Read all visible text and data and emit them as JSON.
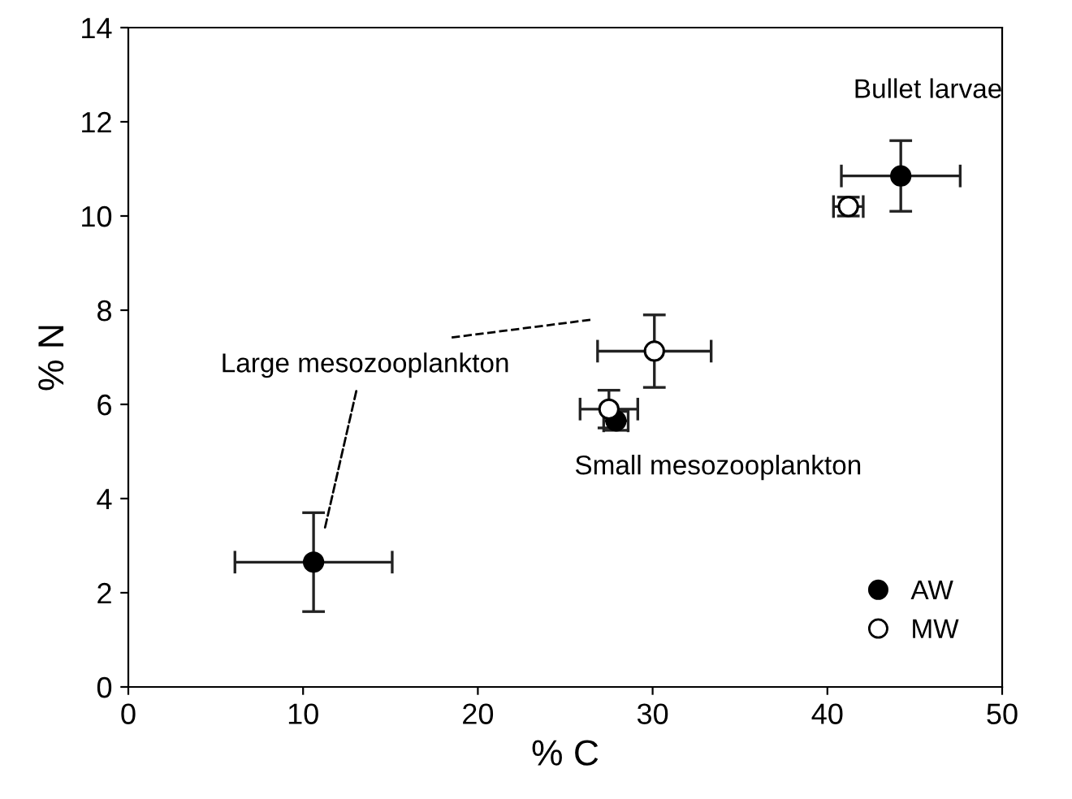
{
  "chart_data": {
    "type": "scatter",
    "xlabel": "% C",
    "ylabel": "% N",
    "xlim": [
      0,
      50
    ],
    "xticks": [
      0,
      10,
      20,
      30,
      40,
      50
    ],
    "ylim": [
      0,
      14
    ],
    "yticks": [
      0,
      2,
      4,
      6,
      8,
      10,
      12,
      14
    ],
    "grid": false,
    "legend": "bottom right",
    "marker": "circle",
    "series": [
      {
        "name": "AW",
        "color": "#000000",
        "x": [
          10.6,
          27.9,
          44.2
        ],
        "values": [
          2.65,
          5.65,
          10.85
        ],
        "xerrors": [
          4.5,
          0.7,
          3.4
        ],
        "errors": [
          1.05,
          0.2,
          0.75
        ]
      },
      {
        "name": "MW",
        "color": "#ffffff",
        "x": [
          30.1,
          27.5,
          41.2
        ],
        "values": [
          7.13,
          5.9,
          10.2
        ],
        "xerrors": [
          3.25,
          1.65,
          0.85
        ],
        "errors": [
          0.77,
          0.4,
          0.2
        ]
      }
    ],
    "annotations": [
      "Large mesozooplankton",
      "Small mesozooplankton",
      "Bullet larvae"
    ]
  }
}
